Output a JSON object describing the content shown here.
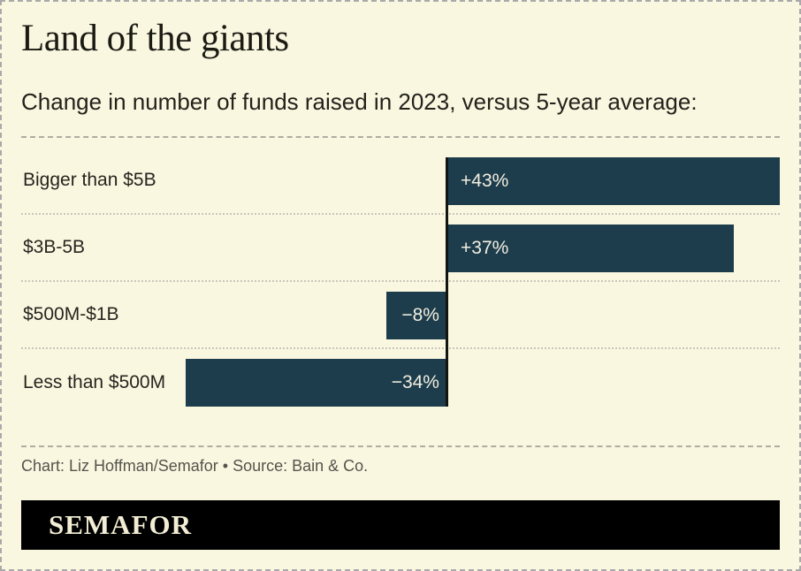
{
  "header": {
    "title": "Land of the giants",
    "subtitle": "Change in number of funds raised in 2023, versus 5-year average:"
  },
  "chart_data": {
    "type": "bar",
    "orientation": "horizontal",
    "title": "Land of the giants",
    "subtitle": "Change in number of funds raised in 2023, versus 5-year average:",
    "categories": [
      "Bigger than $5B",
      "$3B-5B",
      "$500M-$1B",
      "Less than $500M"
    ],
    "values": [
      43,
      37,
      -8,
      -34
    ],
    "value_labels": [
      "+43%",
      "+37%",
      "−8%",
      "−34%"
    ],
    "unit": "percent",
    "xlim": [
      -55,
      43
    ],
    "grid": false,
    "legend": false,
    "zero_axis_line": true,
    "bar_color": "#1E3D4C",
    "bar_label_color": "#F2EFE1"
  },
  "footer": {
    "credits": "Chart: Liz Hoffman/Semafor • Source: Bain & Co.",
    "logo": "SEMAFOR"
  },
  "colors": {
    "background": "#FAF7E1",
    "border_dash": "#A9A9A9",
    "bar": "#1E3D4C",
    "bar_label": "#F2EFE1",
    "axis_line": "#141410",
    "credits_text": "#55544C",
    "logo_bg": "#000000",
    "logo_text": "#F2EDD4"
  }
}
